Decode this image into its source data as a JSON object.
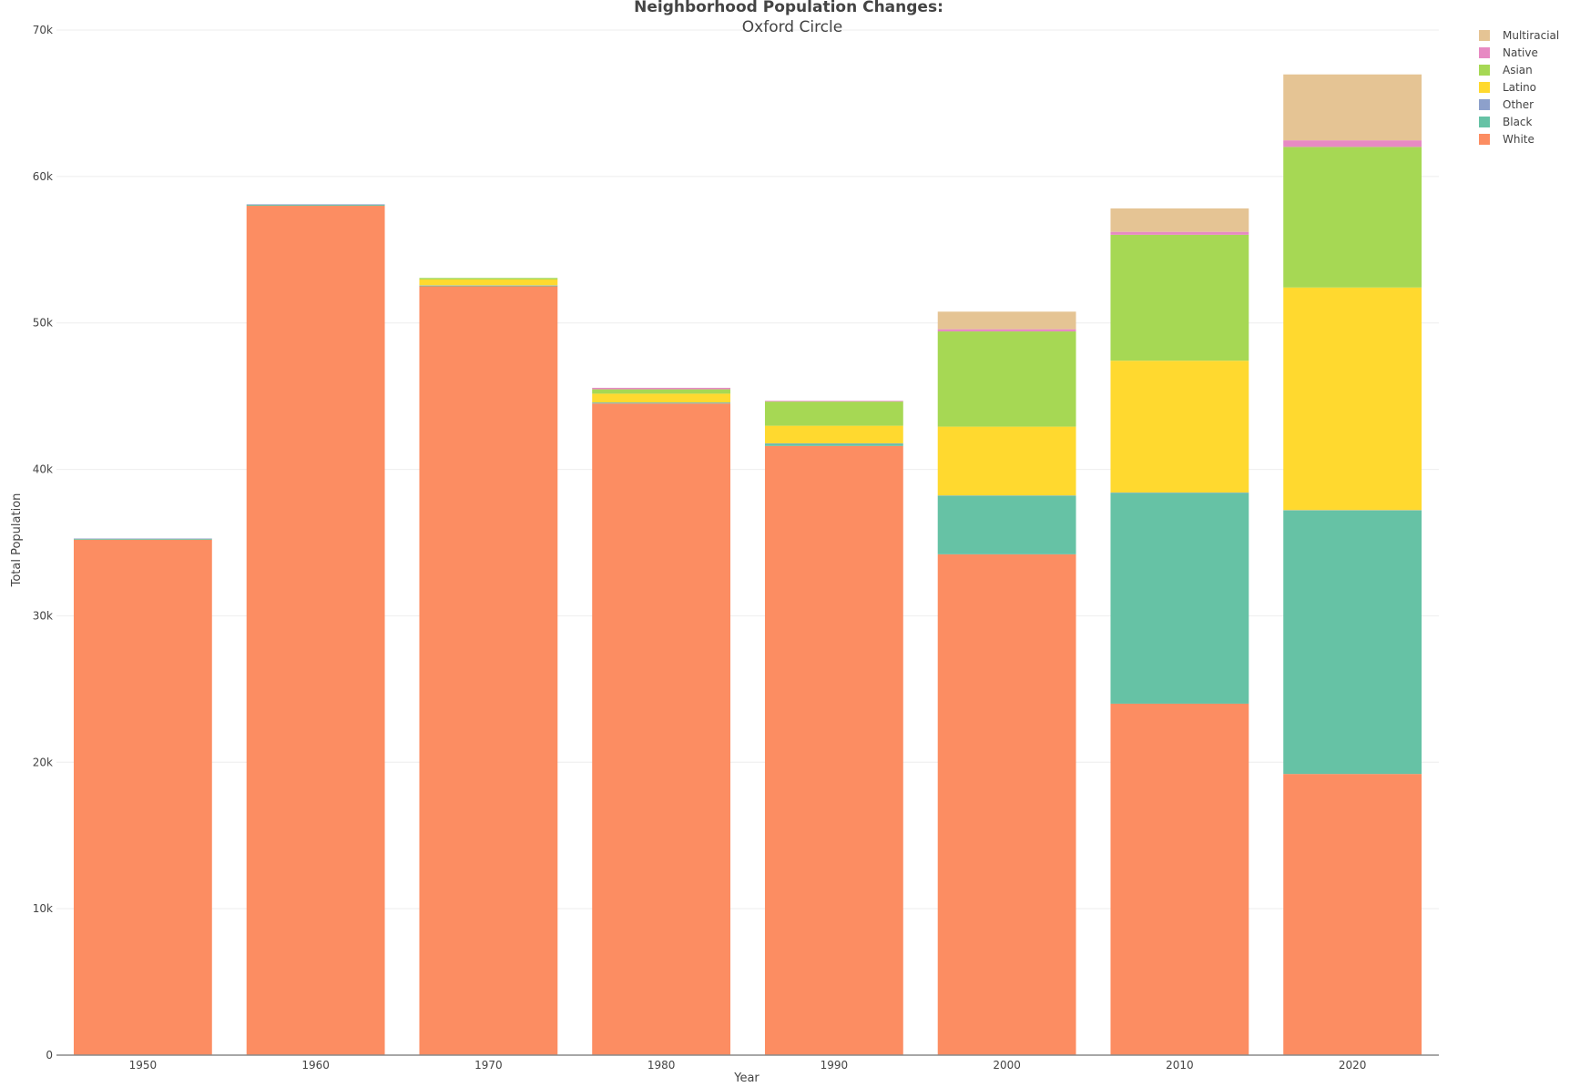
{
  "chart_data": {
    "type": "bar",
    "stacked": true,
    "title": "Neighborhood Population Changes:",
    "subtitle": "Oxford Circle",
    "xlabel": "Year",
    "ylabel": "Total Population",
    "ylim": [
      0,
      70000
    ],
    "y_ticks": [
      0,
      10000,
      20000,
      30000,
      40000,
      50000,
      60000,
      70000
    ],
    "y_tick_labels": [
      "0",
      "10k",
      "20k",
      "30k",
      "40k",
      "50k",
      "60k",
      "70k"
    ],
    "grid": true,
    "legend_position": "top-right",
    "categories": [
      "1950",
      "1960",
      "1970",
      "1980",
      "1990",
      "2000",
      "2010",
      "2020"
    ],
    "series": [
      {
        "name": "White",
        "color": "#fc8d62",
        "values": [
          35200,
          58000,
          52500,
          44500,
          41600,
          34200,
          24000,
          19200
        ]
      },
      {
        "name": "Black",
        "color": "#66c2a5",
        "values": [
          50,
          60,
          50,
          40,
          150,
          4000,
          14400,
          18000
        ]
      },
      {
        "name": "Other",
        "color": "#8da0cb",
        "values": [
          30,
          40,
          20,
          30,
          30,
          20,
          20,
          20
        ]
      },
      {
        "name": "Latino",
        "color": "#ffd92f",
        "values": [
          0,
          0,
          400,
          600,
          1200,
          4700,
          9000,
          15200
        ]
      },
      {
        "name": "Asian",
        "color": "#a6d854",
        "values": [
          0,
          0,
          100,
          300,
          1650,
          6500,
          8600,
          9600
        ]
      },
      {
        "name": "Native",
        "color": "#e78ac3",
        "values": [
          0,
          0,
          0,
          100,
          50,
          150,
          200,
          450
        ]
      },
      {
        "name": "Multiracial",
        "color": "#e5c494",
        "values": [
          0,
          0,
          0,
          0,
          0,
          1200,
          1600,
          4500
        ]
      }
    ],
    "legend_order": [
      "Multiracial",
      "Native",
      "Asian",
      "Latino",
      "Other",
      "Black",
      "White"
    ]
  }
}
